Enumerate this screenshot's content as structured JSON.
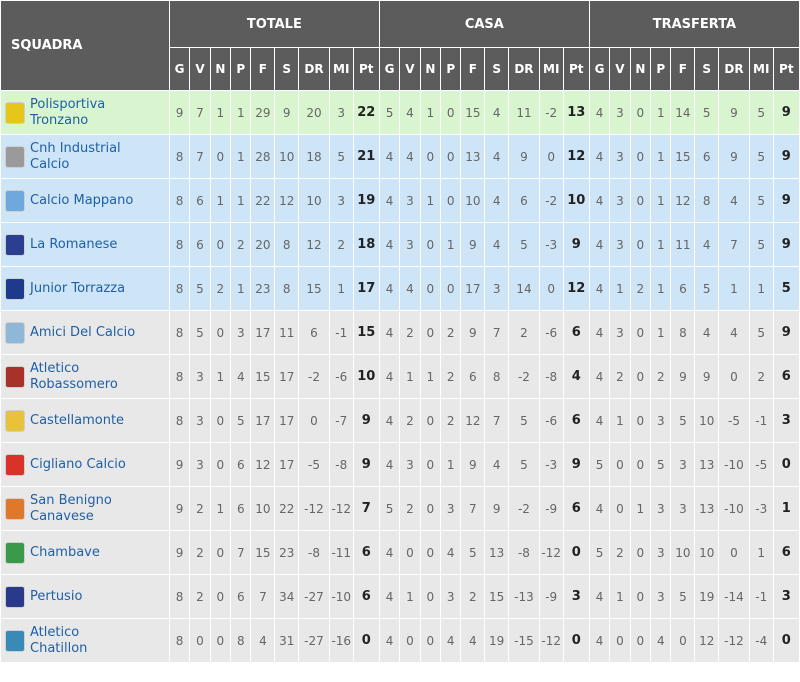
{
  "header": {
    "team_col": "SQUADRA",
    "groups": [
      "TOTALE",
      "CASA",
      "TRASFERTA"
    ],
    "stat_labels": [
      "G",
      "V",
      "N",
      "P",
      "F",
      "S",
      "DR",
      "MI",
      "Pt"
    ]
  },
  "colors": {
    "header_bg": "#5c5c5c",
    "leader_row": "#d9f5cf",
    "zone_row": "#cde5f7",
    "default_row": "#e8e8e8",
    "team_link": "#1f5fa8"
  },
  "teams": [
    {
      "name": "Polisportiva Tronzano",
      "zone": "leader",
      "crest": "#e6c619",
      "totale": [
        "9",
        "7",
        "1",
        "1",
        "29",
        "9",
        "20",
        "3",
        "22"
      ],
      "casa": [
        "5",
        "4",
        "1",
        "0",
        "15",
        "4",
        "11",
        "-2",
        "13"
      ],
      "trasferta": [
        "4",
        "3",
        "0",
        "1",
        "14",
        "5",
        "9",
        "5",
        "9"
      ]
    },
    {
      "name": "Cnh Industrial Calcio",
      "zone": "zone",
      "crest": "#9a9a9a",
      "totale": [
        "8",
        "7",
        "0",
        "1",
        "28",
        "10",
        "18",
        "5",
        "21"
      ],
      "casa": [
        "4",
        "4",
        "0",
        "0",
        "13",
        "4",
        "9",
        "0",
        "12"
      ],
      "trasferta": [
        "4",
        "3",
        "0",
        "1",
        "15",
        "6",
        "9",
        "5",
        "9"
      ]
    },
    {
      "name": "Calcio Mappano",
      "zone": "zone",
      "crest": "#6fa8dc",
      "totale": [
        "8",
        "6",
        "1",
        "1",
        "22",
        "12",
        "10",
        "3",
        "19"
      ],
      "casa": [
        "4",
        "3",
        "1",
        "0",
        "10",
        "4",
        "6",
        "-2",
        "10"
      ],
      "trasferta": [
        "4",
        "3",
        "0",
        "1",
        "12",
        "8",
        "4",
        "5",
        "9"
      ]
    },
    {
      "name": "La Romanese",
      "zone": "zone",
      "crest": "#2a3f8f",
      "totale": [
        "8",
        "6",
        "0",
        "2",
        "20",
        "8",
        "12",
        "2",
        "18"
      ],
      "casa": [
        "4",
        "3",
        "0",
        "1",
        "9",
        "4",
        "5",
        "-3",
        "9"
      ],
      "trasferta": [
        "4",
        "3",
        "0",
        "1",
        "11",
        "4",
        "7",
        "5",
        "9"
      ]
    },
    {
      "name": "Junior Torrazza",
      "zone": "zone",
      "crest": "#1e3a8a",
      "totale": [
        "8",
        "5",
        "2",
        "1",
        "23",
        "8",
        "15",
        "1",
        "17"
      ],
      "casa": [
        "4",
        "4",
        "0",
        "0",
        "17",
        "3",
        "14",
        "0",
        "12"
      ],
      "trasferta": [
        "4",
        "1",
        "2",
        "1",
        "6",
        "5",
        "1",
        "1",
        "5"
      ]
    },
    {
      "name": "Amici Del Calcio",
      "zone": "default",
      "crest": "#8fb8d8",
      "totale": [
        "8",
        "5",
        "0",
        "3",
        "17",
        "11",
        "6",
        "-1",
        "15"
      ],
      "casa": [
        "4",
        "2",
        "0",
        "2",
        "9",
        "7",
        "2",
        "-6",
        "6"
      ],
      "trasferta": [
        "4",
        "3",
        "0",
        "1",
        "8",
        "4",
        "4",
        "5",
        "9"
      ]
    },
    {
      "name": "Atletico Robassomero",
      "zone": "default",
      "crest": "#a8322a",
      "totale": [
        "8",
        "3",
        "1",
        "4",
        "15",
        "17",
        "-2",
        "-6",
        "10"
      ],
      "casa": [
        "4",
        "1",
        "1",
        "2",
        "6",
        "8",
        "-2",
        "-8",
        "4"
      ],
      "trasferta": [
        "4",
        "2",
        "0",
        "2",
        "9",
        "9",
        "0",
        "2",
        "6"
      ]
    },
    {
      "name": "Castellamonte",
      "zone": "default",
      "crest": "#e8c23a",
      "totale": [
        "8",
        "3",
        "0",
        "5",
        "17",
        "17",
        "0",
        "-7",
        "9"
      ],
      "casa": [
        "4",
        "2",
        "0",
        "2",
        "12",
        "7",
        "5",
        "-6",
        "6"
      ],
      "trasferta": [
        "4",
        "1",
        "0",
        "3",
        "5",
        "10",
        "-5",
        "-1",
        "3"
      ]
    },
    {
      "name": "Cigliano Calcio",
      "zone": "default",
      "crest": "#d8322a",
      "totale": [
        "9",
        "3",
        "0",
        "6",
        "12",
        "17",
        "-5",
        "-8",
        "9"
      ],
      "casa": [
        "4",
        "3",
        "0",
        "1",
        "9",
        "4",
        "5",
        "-3",
        "9"
      ],
      "trasferta": [
        "5",
        "0",
        "0",
        "5",
        "3",
        "13",
        "-10",
        "-5",
        "0"
      ]
    },
    {
      "name": "San Benigno Canavese",
      "zone": "default",
      "crest": "#e0782a",
      "totale": [
        "9",
        "2",
        "1",
        "6",
        "10",
        "22",
        "-12",
        "-12",
        "7"
      ],
      "casa": [
        "5",
        "2",
        "0",
        "3",
        "7",
        "9",
        "-2",
        "-9",
        "6"
      ],
      "trasferta": [
        "4",
        "0",
        "1",
        "3",
        "3",
        "13",
        "-10",
        "-3",
        "1"
      ]
    },
    {
      "name": "Chambave",
      "zone": "default",
      "crest": "#3a9a4a",
      "totale": [
        "9",
        "2",
        "0",
        "7",
        "15",
        "23",
        "-8",
        "-11",
        "6"
      ],
      "casa": [
        "4",
        "0",
        "0",
        "4",
        "5",
        "13",
        "-8",
        "-12",
        "0"
      ],
      "trasferta": [
        "5",
        "2",
        "0",
        "3",
        "10",
        "10",
        "0",
        "1",
        "6"
      ]
    },
    {
      "name": "Pertusio",
      "zone": "default",
      "crest": "#2a3a8a",
      "totale": [
        "8",
        "2",
        "0",
        "6",
        "7",
        "34",
        "-27",
        "-10",
        "6"
      ],
      "casa": [
        "4",
        "1",
        "0",
        "3",
        "2",
        "15",
        "-13",
        "-9",
        "3"
      ],
      "trasferta": [
        "4",
        "1",
        "0",
        "3",
        "5",
        "19",
        "-14",
        "-1",
        "3"
      ]
    },
    {
      "name": "Atletico Chatillon",
      "zone": "default",
      "crest": "#3a8ab8",
      "totale": [
        "8",
        "0",
        "0",
        "8",
        "4",
        "31",
        "-27",
        "-16",
        "0"
      ],
      "casa": [
        "4",
        "0",
        "0",
        "4",
        "4",
        "19",
        "-15",
        "-12",
        "0"
      ],
      "trasferta": [
        "4",
        "0",
        "0",
        "4",
        "0",
        "12",
        "-12",
        "-4",
        "0"
      ]
    }
  ]
}
